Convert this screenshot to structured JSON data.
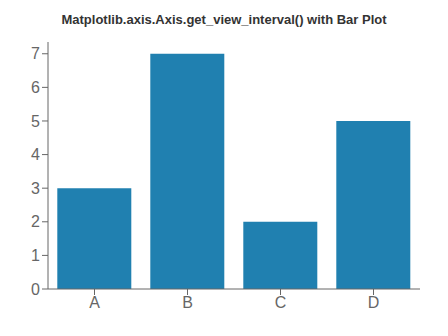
{
  "chart_data": {
    "type": "bar",
    "title": "Matplotlib.axis.Axis.get_view_interval() with Bar Plot",
    "categories": [
      "A",
      "B",
      "C",
      "D"
    ],
    "values": [
      3,
      7,
      2,
      5
    ],
    "color": "#2080b0",
    "ylim": [
      0,
      7.35
    ],
    "yticks": [
      0,
      1,
      2,
      3,
      4,
      5,
      6,
      7
    ],
    "grid": false
  }
}
